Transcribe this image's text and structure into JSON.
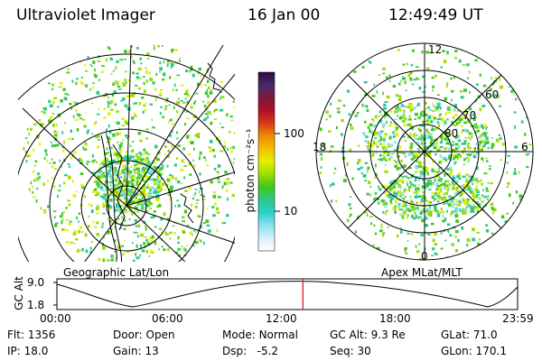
{
  "header": {
    "instrument": "Ultraviolet Imager",
    "date": "16 Jan 00",
    "time": "12:49:49 UT"
  },
  "colorbar": {
    "label": "photon cm⁻²s⁻¹",
    "ticks": [
      "100",
      "10"
    ],
    "stops": [
      "#2b0a3d",
      "#4c2a6a",
      "#7a1a3a",
      "#b0102a",
      "#d83a14",
      "#f08c00",
      "#f4c000",
      "#e6f000",
      "#9cdc00",
      "#3fc81a",
      "#2cc88a",
      "#2ad0c8",
      "#8ce0f0",
      "#d8f0f8",
      "#ffffff"
    ]
  },
  "left_panel": {
    "caption": "Geographic Lat/Lon"
  },
  "right_panel": {
    "caption": "Apex MLat/MLT",
    "mlt_labels": {
      "top": "12",
      "left": "18",
      "right": "6",
      "bottom": "0"
    },
    "lat_labels": [
      "60",
      "70",
      "80"
    ]
  },
  "timeline": {
    "axis_label": "GC Alt",
    "y_ticks": [
      "9.0",
      "1.8"
    ],
    "x_ticks": [
      "00:00",
      "06:00",
      "12:00",
      "18:00",
      "23:59"
    ],
    "current_fraction": 0.534,
    "marker_color": "#e02020"
  },
  "status": {
    "flt_label": "Flt:",
    "flt": "1356",
    "door_label": "Door:",
    "door": "Open",
    "mode_label": "Mode:",
    "mode": "Normal",
    "gcalt_label": "GC Alt:",
    "gcalt": "9.3 Re",
    "glat_label": "GLat:",
    "glat": "71.0",
    "ip_label": "IP:",
    "ip": "18.0",
    "gain_label": "Gain:",
    "gain": "13",
    "dsp_label": "Dsp:",
    "dsp": "-5.2",
    "seq_label": "Seq:",
    "seq": "30",
    "glon_label": "GLon:",
    "glon": "170.1"
  }
}
